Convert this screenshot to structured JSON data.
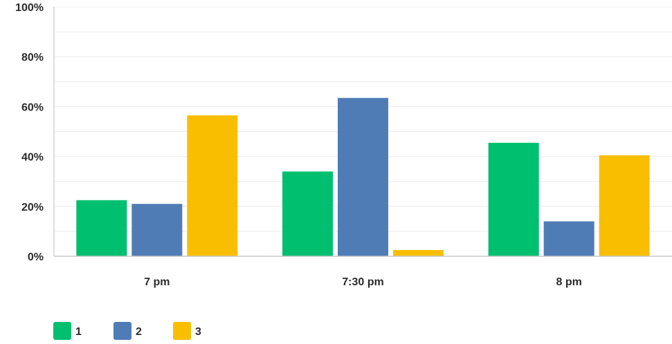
{
  "chart_data": {
    "type": "bar",
    "categories": [
      "7 pm",
      "7:30 pm",
      "8 pm"
    ],
    "series": [
      {
        "name": "1",
        "color": "#00bf6f",
        "values": [
          22.5,
          34,
          45.5
        ]
      },
      {
        "name": "2",
        "color": "#507cb6",
        "values": [
          21,
          63.5,
          14
        ]
      },
      {
        "name": "3",
        "color": "#f9be00",
        "values": [
          56.5,
          2.5,
          40.5
        ]
      }
    ],
    "ylim": [
      0,
      100
    ],
    "yticks": [
      "0%",
      "20%",
      "40%",
      "60%",
      "80%",
      "100%"
    ],
    "ytick_values": [
      0,
      20,
      40,
      60,
      80,
      100
    ],
    "grid": true,
    "legend_position": "bottom-left",
    "title": "",
    "xlabel": "",
    "ylabel": ""
  }
}
